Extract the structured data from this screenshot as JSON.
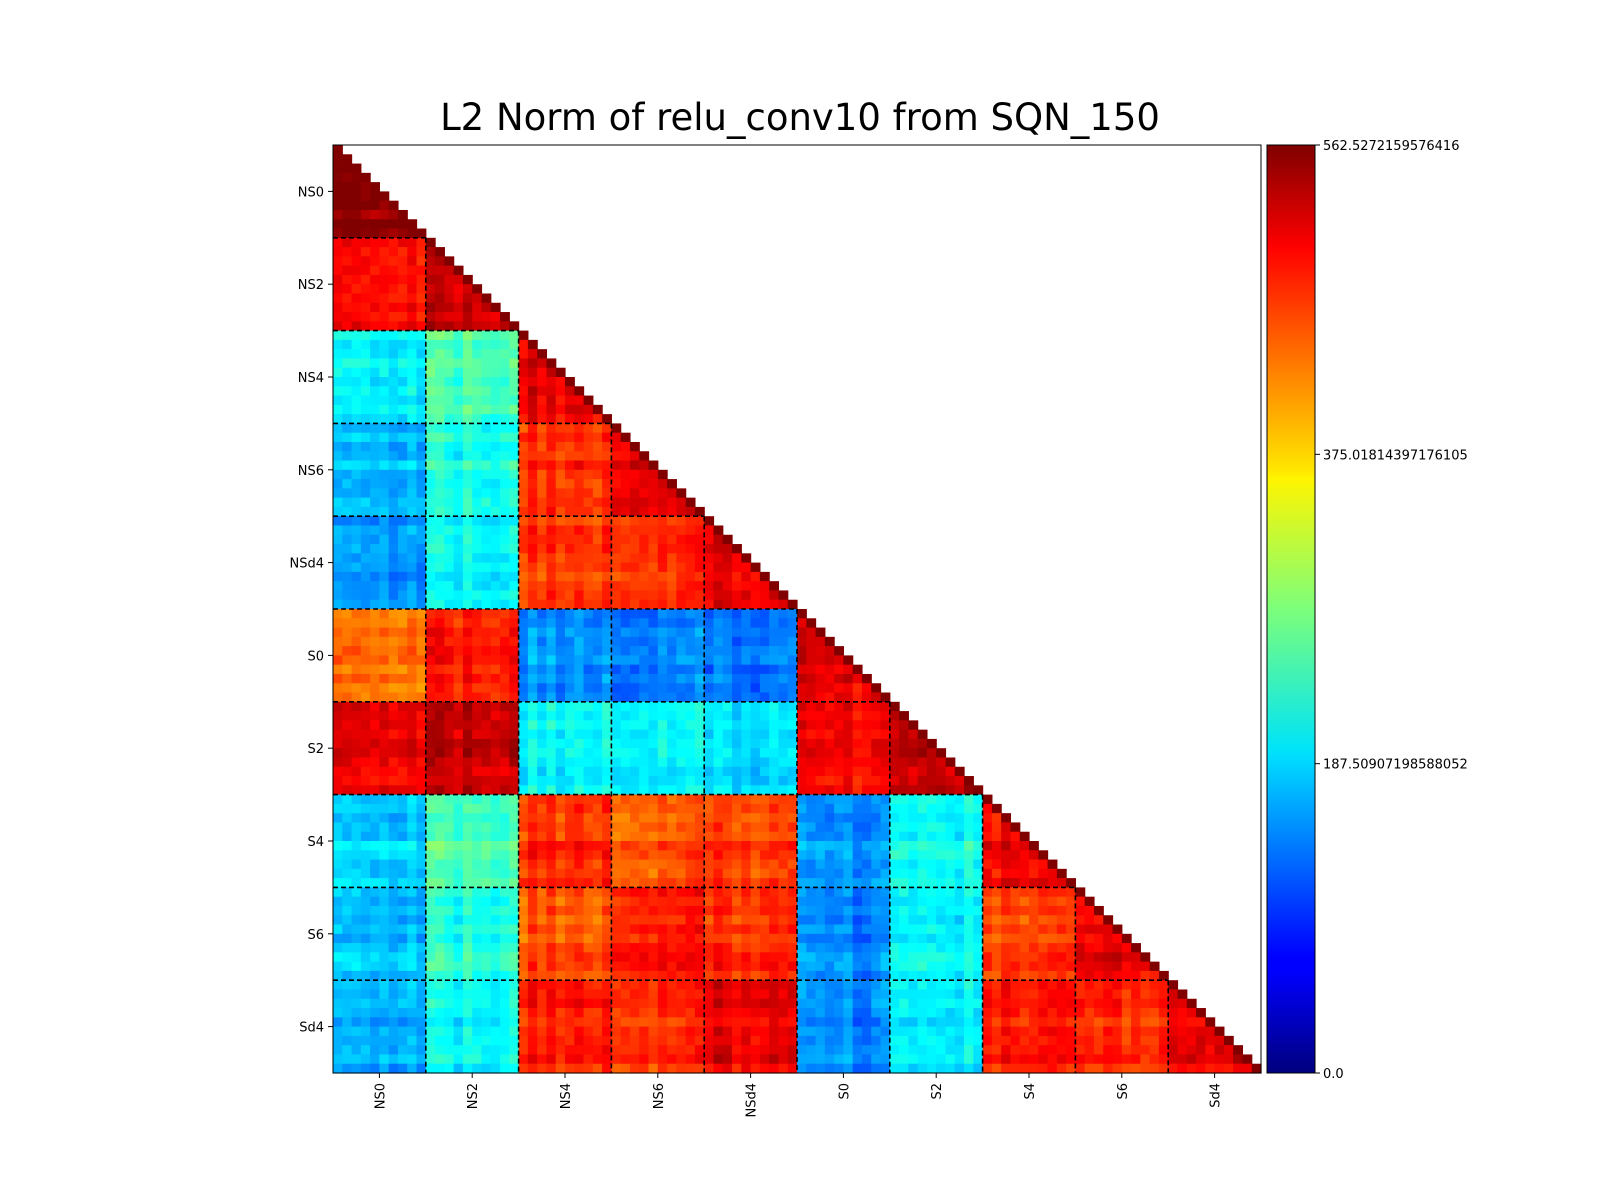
{
  "chart_data": {
    "type": "heatmap",
    "title": "L2 Norm of relu_conv10 from SQN_150",
    "xlabel": "",
    "ylabel": "",
    "colormap": "jet",
    "lower_triangle_only": true,
    "grid": false,
    "cells_per_group": 10,
    "groups": [
      "NS0",
      "NS2",
      "NS4",
      "NS6",
      "NSd4",
      "S0",
      "S2",
      "S4",
      "S6",
      "Sd4"
    ],
    "vmin": 0.0,
    "vmax": 562.5272159576416,
    "colorbar_ticks": [
      "0.0",
      "187.50907198588052",
      "375.01814397176105",
      "562.5272159576416"
    ],
    "block_mean_values": [
      [
        550
      ],
      [
        490,
        520
      ],
      [
        205,
        250,
        505
      ],
      [
        175,
        225,
        470,
        510
      ],
      [
        150,
        205,
        460,
        465,
        500
      ],
      [
        430,
        480,
        150,
        140,
        135,
        505
      ],
      [
        500,
        520,
        210,
        205,
        190,
        490,
        525
      ],
      [
        185,
        250,
        470,
        445,
        460,
        150,
        220,
        495
      ],
      [
        175,
        230,
        450,
        480,
        470,
        145,
        210,
        455,
        500
      ],
      [
        165,
        210,
        475,
        465,
        500,
        140,
        200,
        475,
        470,
        505
      ]
    ],
    "group_separators": "dashed black lines between groups"
  }
}
